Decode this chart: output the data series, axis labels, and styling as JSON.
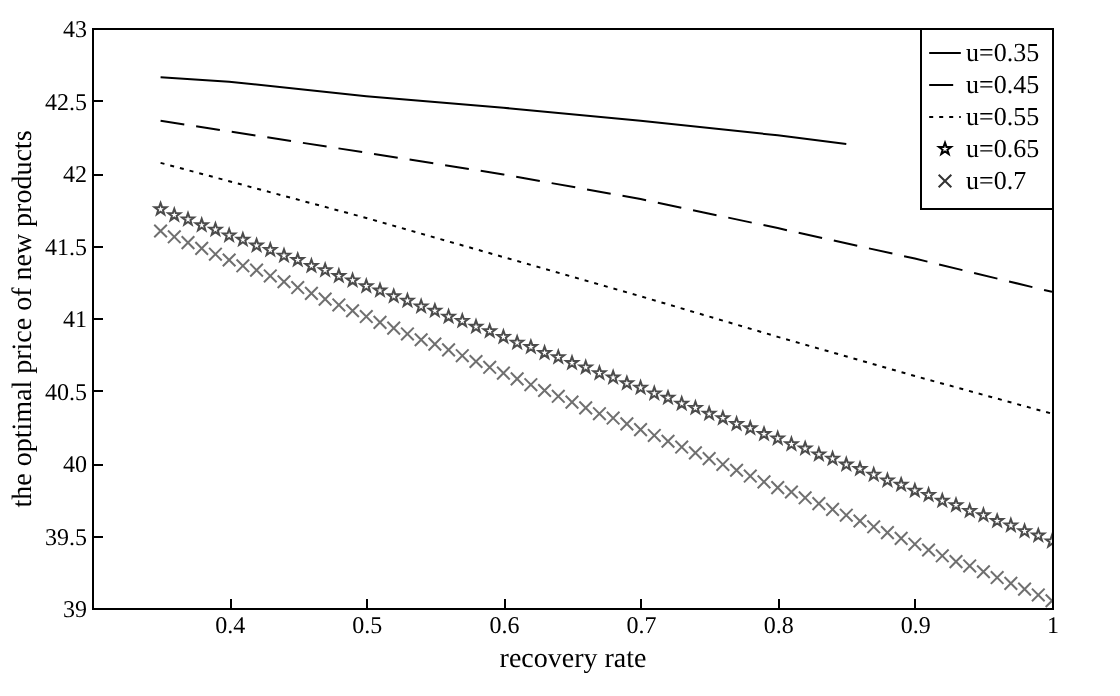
{
  "chart_data": {
    "type": "line",
    "xlabel": "recovery rate",
    "ylabel": "the optimal price of new products",
    "xlim": [
      0.3,
      1
    ],
    "ylim": [
      39,
      43
    ],
    "xticks": [
      0.4,
      0.5,
      0.6,
      0.7,
      0.8,
      0.9,
      1
    ],
    "yticks": [
      39,
      39.5,
      40,
      40.5,
      41,
      41.5,
      42,
      42.5,
      43
    ],
    "grid": false,
    "legend": "top right",
    "series": [
      {
        "name": "u=0.35",
        "color": "#000000",
        "line_style": "solid",
        "x": [
          0.35,
          0.4,
          0.5,
          0.6,
          0.7,
          0.8,
          0.85
        ],
        "values": [
          42.66,
          42.63,
          42.53,
          42.45,
          42.36,
          42.26,
          42.2
        ]
      },
      {
        "name": "u=0.45",
        "color": "#000000",
        "line_style": "dashed",
        "x": [
          0.35,
          0.5,
          0.6,
          0.7,
          0.8,
          0.9,
          1
        ],
        "values": [
          42.36,
          42.14,
          41.99,
          41.82,
          41.62,
          41.41,
          41.18
        ]
      },
      {
        "name": "u=0.55",
        "color": "#000000",
        "line_style": "dotted",
        "x": [
          0.35,
          0.5,
          0.6,
          0.7,
          0.8,
          0.9,
          1
        ],
        "values": [
          42.07,
          41.69,
          41.42,
          41.15,
          40.87,
          40.6,
          40.34
        ]
      },
      {
        "name": "u=0.65",
        "color": "#000000",
        "type": "scatter",
        "marker": "star",
        "x": [
          0.35,
          0.36,
          0.37,
          0.38,
          0.39,
          0.4,
          0.41,
          0.42,
          0.43,
          0.44,
          0.45,
          0.46,
          0.47,
          0.48,
          0.49,
          0.5,
          0.51,
          0.52,
          0.53,
          0.54,
          0.55,
          0.56,
          0.57,
          0.58,
          0.59,
          0.6,
          0.61,
          0.62,
          0.63,
          0.64,
          0.65,
          0.66,
          0.67,
          0.68,
          0.69,
          0.7,
          0.71,
          0.72,
          0.73,
          0.74,
          0.75,
          0.76,
          0.77,
          0.78,
          0.79,
          0.8,
          0.81,
          0.82,
          0.83,
          0.84,
          0.85,
          0.86,
          0.87,
          0.88,
          0.89,
          0.9,
          0.91,
          0.92,
          0.93,
          0.94,
          0.95,
          0.96,
          0.97,
          0.98,
          0.99,
          1
        ],
        "values": [
          41.75,
          41.71,
          41.68,
          41.64,
          41.61,
          41.57,
          41.54,
          41.5,
          41.47,
          41.43,
          41.4,
          41.36,
          41.33,
          41.29,
          41.26,
          41.22,
          41.19,
          41.15,
          41.12,
          41.08,
          41.05,
          41.01,
          40.98,
          40.94,
          40.91,
          40.87,
          40.83,
          40.8,
          40.76,
          40.73,
          40.69,
          40.66,
          40.62,
          40.59,
          40.55,
          40.52,
          40.48,
          40.45,
          40.41,
          40.38,
          40.34,
          40.31,
          40.27,
          40.24,
          40.2,
          40.17,
          40.13,
          40.1,
          40.06,
          40.03,
          39.99,
          39.96,
          39.92,
          39.88,
          39.85,
          39.81,
          39.78,
          39.74,
          39.71,
          39.67,
          39.64,
          39.6,
          39.57,
          39.53,
          39.5,
          39.46
        ]
      },
      {
        "name": "u=0.7",
        "color": "#333333",
        "type": "scatter",
        "marker": "cross",
        "x": [
          0.35,
          0.36,
          0.37,
          0.38,
          0.39,
          0.4,
          0.41,
          0.42,
          0.43,
          0.44,
          0.45,
          0.46,
          0.47,
          0.48,
          0.49,
          0.5,
          0.51,
          0.52,
          0.53,
          0.54,
          0.55,
          0.56,
          0.57,
          0.58,
          0.59,
          0.6,
          0.61,
          0.62,
          0.63,
          0.64,
          0.65,
          0.66,
          0.67,
          0.68,
          0.69,
          0.7,
          0.71,
          0.72,
          0.73,
          0.74,
          0.75,
          0.76,
          0.77,
          0.78,
          0.79,
          0.8,
          0.81,
          0.82,
          0.83,
          0.84,
          0.85,
          0.86,
          0.87,
          0.88,
          0.89,
          0.9,
          0.91,
          0.92,
          0.93,
          0.94,
          0.95,
          0.96,
          0.97,
          0.98,
          0.99,
          1
        ],
        "values": [
          41.6,
          41.56,
          41.52,
          41.48,
          41.44,
          41.4,
          41.36,
          41.33,
          41.29,
          41.25,
          41.21,
          41.17,
          41.13,
          41.09,
          41.05,
          41.01,
          40.97,
          40.93,
          40.89,
          40.85,
          40.82,
          40.78,
          40.74,
          40.7,
          40.66,
          40.62,
          40.58,
          40.54,
          40.5,
          40.46,
          40.42,
          40.38,
          40.34,
          40.31,
          40.27,
          40.23,
          40.19,
          40.15,
          40.11,
          40.07,
          40.03,
          39.99,
          39.95,
          39.91,
          39.87,
          39.83,
          39.8,
          39.76,
          39.72,
          39.68,
          39.64,
          39.6,
          39.56,
          39.52,
          39.48,
          39.44,
          39.4,
          39.36,
          39.32,
          39.29,
          39.25,
          39.21,
          39.17,
          39.13,
          39.09,
          39.05
        ]
      }
    ]
  }
}
